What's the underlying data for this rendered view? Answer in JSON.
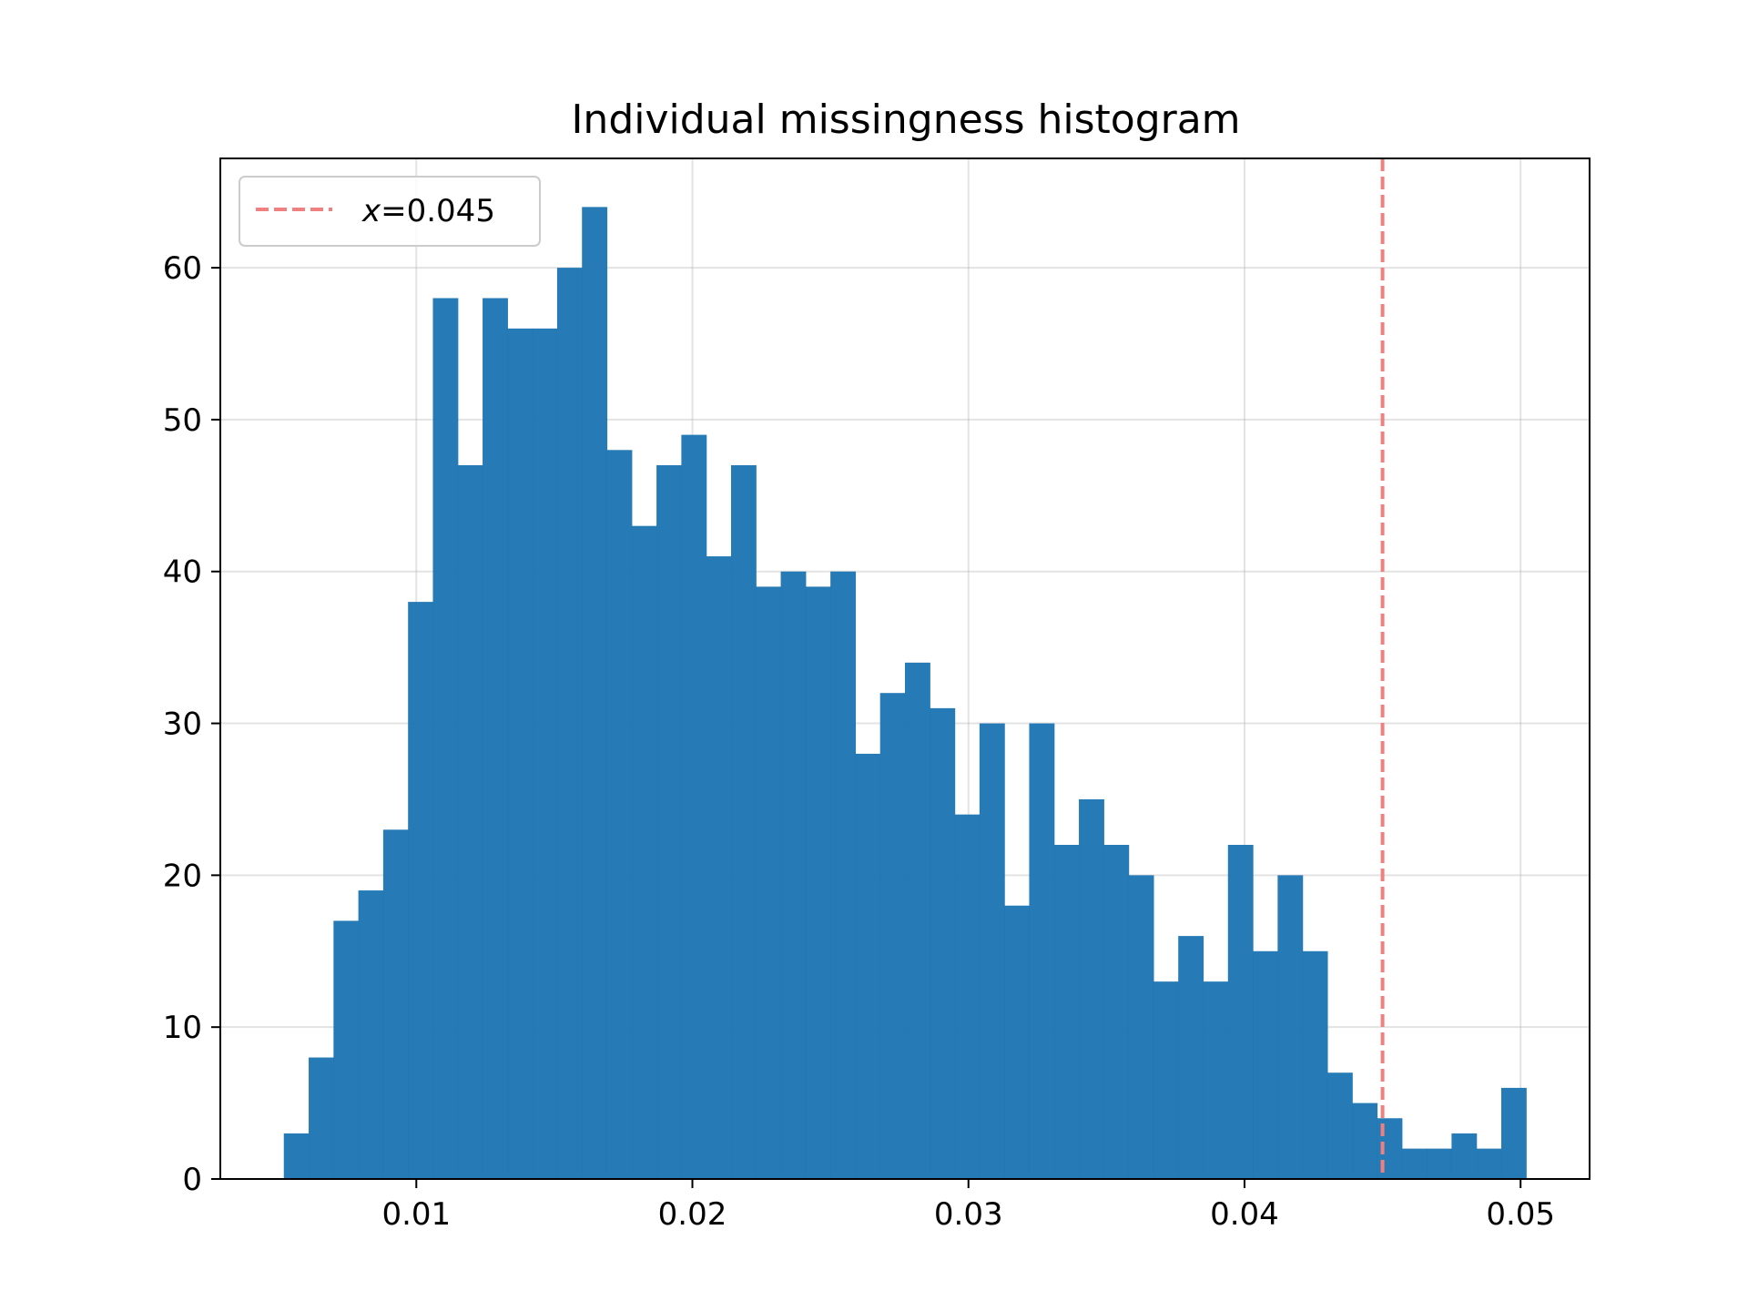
{
  "chart_data": {
    "type": "bar",
    "title": "Individual missingness histogram",
    "xlabel": "",
    "ylabel": "",
    "xlim": [
      0.0029,
      0.0525
    ],
    "ylim": [
      0,
      67.2
    ],
    "xticks": [
      0.01,
      0.02,
      0.03,
      0.04,
      0.05
    ],
    "xtick_labels": [
      "0.01",
      "0.02",
      "0.03",
      "0.04",
      "0.05"
    ],
    "yticks": [
      0,
      10,
      20,
      30,
      40,
      50,
      60
    ],
    "ytick_labels": [
      "0",
      "10",
      "20",
      "30",
      "40",
      "50",
      "60"
    ],
    "grid": true,
    "bin_start": 0.0052,
    "bin_width": 0.0009,
    "values": [
      3,
      8,
      17,
      19,
      23,
      38,
      58,
      47,
      58,
      56,
      56,
      60,
      64,
      48,
      43,
      47,
      49,
      41,
      47,
      39,
      40,
      39,
      40,
      28,
      32,
      34,
      31,
      24,
      30,
      18,
      30,
      22,
      25,
      22,
      20,
      13,
      16,
      13,
      22,
      15,
      20,
      15,
      7,
      5,
      4,
      2,
      2,
      3,
      2,
      6
    ],
    "bar_color": "#1f77b4",
    "threshold": {
      "x": 0.045,
      "color": "#f08080",
      "style": "dashed",
      "legend_var": "x",
      "legend_rest": "=0.045"
    },
    "legend_placement": "top-left"
  }
}
